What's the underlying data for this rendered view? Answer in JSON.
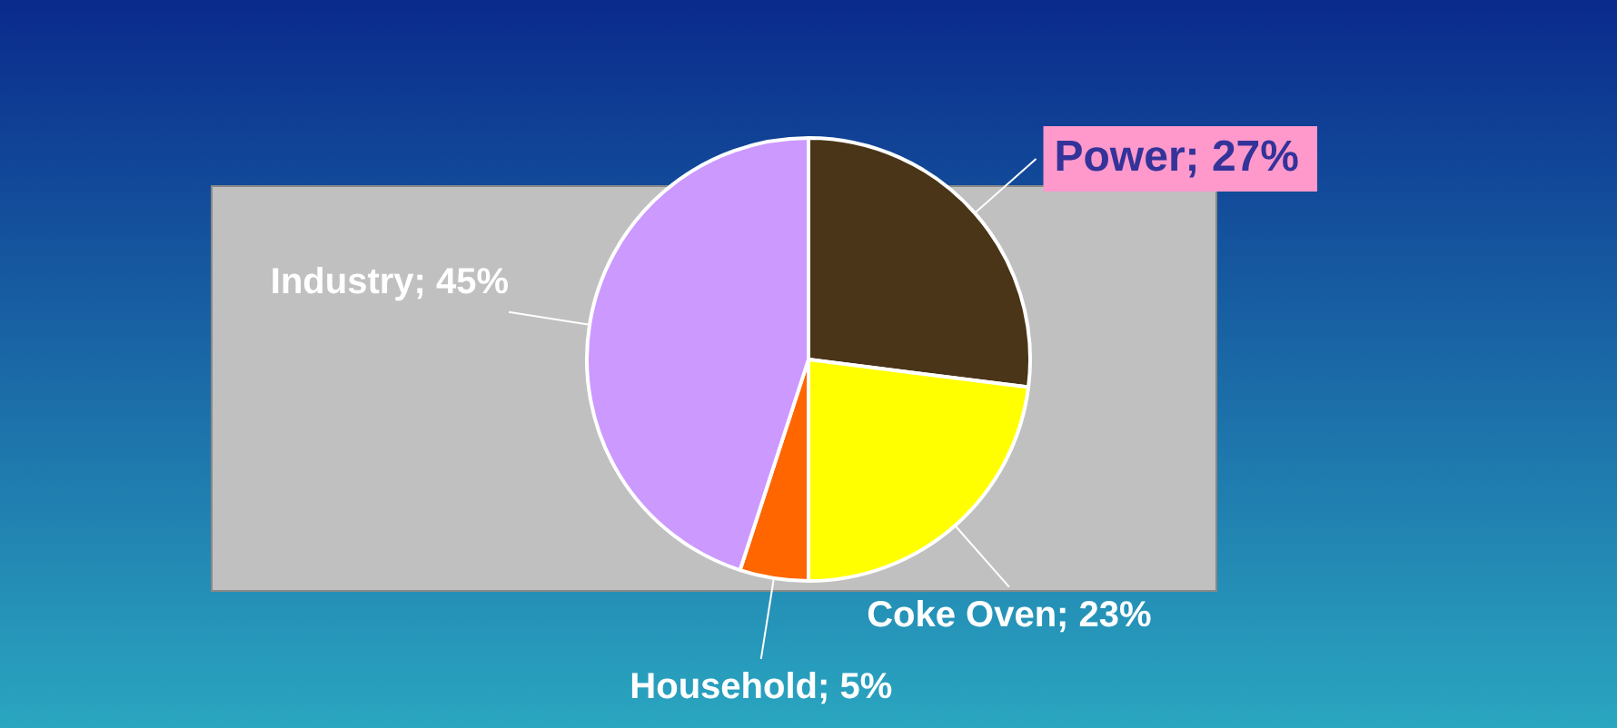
{
  "chart_data": {
    "type": "pie",
    "categories": [
      "Power",
      "Coke Oven",
      "Household",
      "Industry"
    ],
    "values": [
      27,
      23,
      5,
      45
    ],
    "value_labels": [
      "27%",
      "23%",
      "5%",
      "45%"
    ],
    "colors": [
      "#4a3518",
      "#ffff00",
      "#ff6600",
      "#cc99ff"
    ],
    "legend": false
  }
}
